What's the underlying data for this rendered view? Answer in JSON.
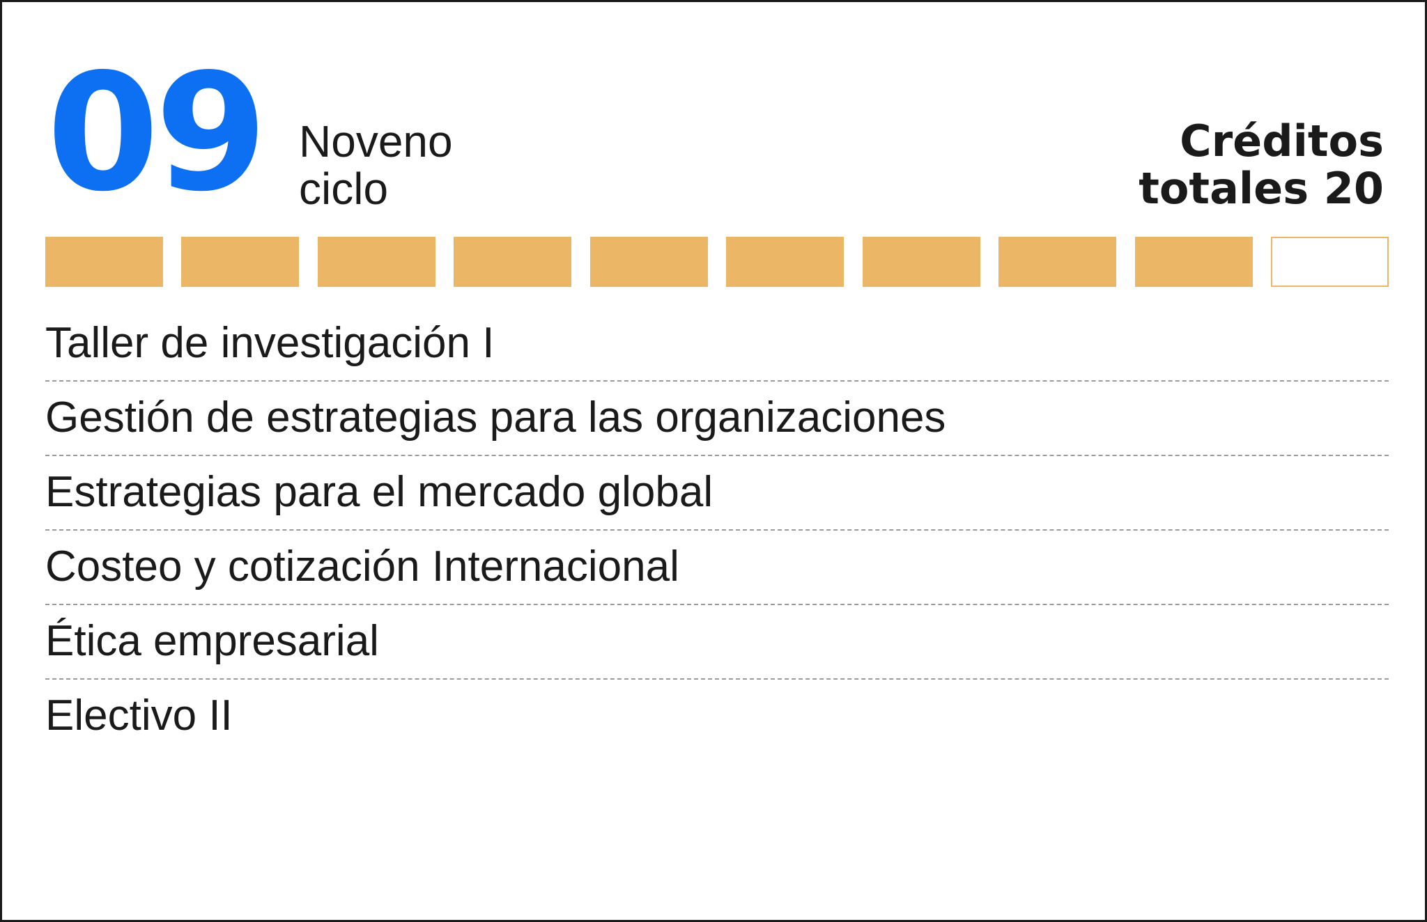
{
  "header": {
    "cycle_number": "09",
    "cycle_name_line1": "Noveno",
    "cycle_name_line2": "ciclo",
    "credits_line1": "Créditos",
    "credits_line2_label": "totales",
    "credits_total": "20"
  },
  "progress": {
    "filled_segments": 9,
    "total_segments": 10,
    "filled_color": "#ebb666",
    "empty_color": "#ffffff"
  },
  "courses": [
    "Taller de investigación I",
    "Gestión de estrategias para las organizaciones",
    "Estrategias para el mercado global",
    "Costeo y cotización Internacional",
    "Ética empresarial",
    "Electivo II"
  ],
  "colors": {
    "accent": "#0d6ff2",
    "text": "#1a1a1a",
    "progress": "#ebb666",
    "border": "#1a1a1a"
  }
}
